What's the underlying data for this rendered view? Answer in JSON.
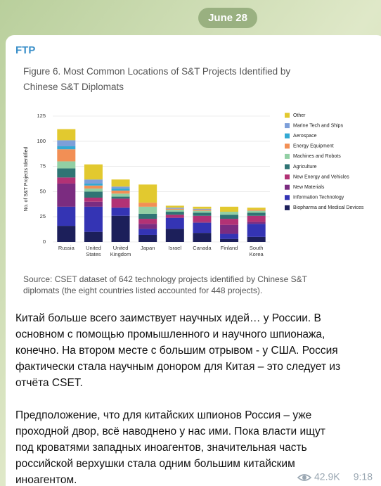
{
  "date": "June 28",
  "channel": "FTP",
  "chart_data": {
    "type": "stacked_bar",
    "title": "Figure 6. Most Common Locations of S&T Projects Identified by Chinese S&T Diplomats",
    "y_label": "No. of S&T Projects Identified",
    "source": "Source: CSET dataset of 642 technology projects identified by Chinese S&T diplomats (the eight countries listed accounted for 448 projects).",
    "categories": [
      "Russia",
      "United States",
      "United Kingdom",
      "Japan",
      "Israel",
      "Canada",
      "Finland",
      "South Korea"
    ],
    "ylim": [
      0,
      125
    ],
    "yticks": [
      0,
      25,
      50,
      75,
      100,
      125
    ],
    "grid": true,
    "series": [
      {
        "name": "Biopharma and Medical Devices",
        "color": "#1c1f5a",
        "values": [
          16,
          10,
          26,
          7,
          13,
          9,
          3,
          5
        ]
      },
      {
        "name": "Information Technology",
        "color": "#3434b4",
        "values": [
          19,
          25,
          8,
          6,
          11,
          10,
          5,
          13
        ]
      },
      {
        "name": "New Materials",
        "color": "#7b2c80",
        "values": [
          23,
          5,
          0,
          5,
          0,
          1,
          9,
          2
        ]
      },
      {
        "name": "New Energy and Vehicles",
        "color": "#b23275",
        "values": [
          6,
          4,
          9,
          5,
          3,
          6,
          6,
          6
        ]
      },
      {
        "name": "Agriculture",
        "color": "#2f7474",
        "values": [
          9,
          6,
          2,
          5,
          3,
          3,
          4,
          3
        ]
      },
      {
        "name": "Machines and Robots",
        "color": "#92cfa4",
        "values": [
          7,
          3,
          3,
          7,
          2,
          2,
          3,
          2
        ]
      },
      {
        "name": "Energy Equipment",
        "color": "#f28f55",
        "values": [
          12,
          3,
          3,
          4,
          1,
          1,
          0,
          1
        ]
      },
      {
        "name": "Aerospace",
        "color": "#33a9d3",
        "values": [
          3,
          2,
          2,
          0,
          0,
          0,
          0,
          0
        ]
      },
      {
        "name": "Marine Tech and Ships",
        "color": "#7d9fd9",
        "values": [
          6,
          4,
          2,
          0,
          1,
          1,
          0,
          0
        ]
      },
      {
        "name": "Other",
        "color": "#e2c92f",
        "values": [
          11,
          15,
          7,
          18,
          2,
          2,
          5,
          2
        ]
      }
    ]
  },
  "post": {
    "paragraphs": [
      [
        "Китай больше всего заимствует научных идей… у России. В",
        "основном с помощью промышленного и научного шпионажа,",
        "конечно. На втором месте с большим отрывом - у США. Россия",
        "фактически стала научным донором для Китая – это следует из",
        "отчёта CSET."
      ],
      [
        "Предположение, что для китайских шпионов Россия – уже",
        "проходной двор, всё наводнено у нас ими. Пока власти ищут",
        "под кроватями западных иноагентов, значительная часть",
        "российской верхушки стала одним большим китайским",
        "иноагентом."
      ]
    ],
    "views": "42.9K",
    "time": "9:18"
  }
}
